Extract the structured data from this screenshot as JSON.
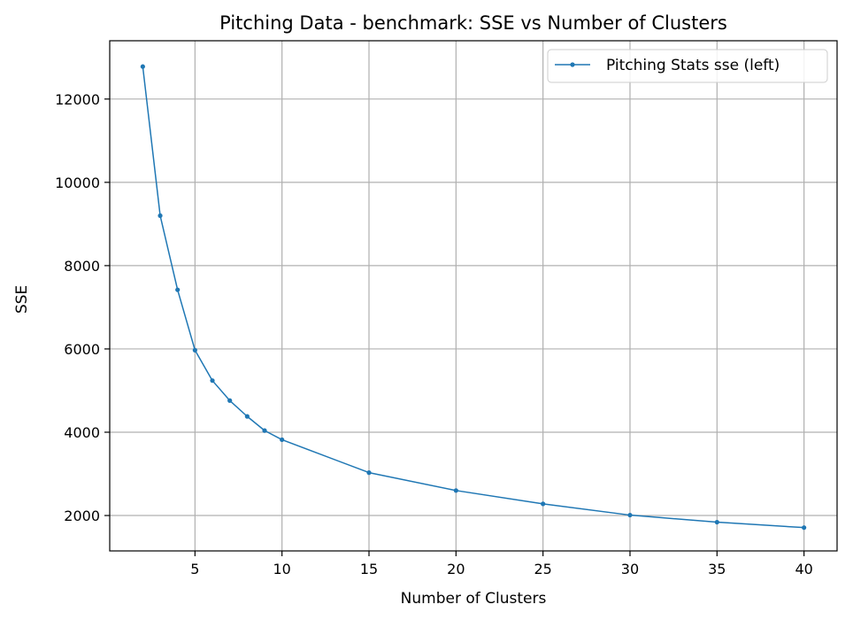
{
  "chart_data": {
    "type": "line",
    "title": "Pitching Data - benchmark: SSE vs Number of Clusters",
    "xlabel": "Number of Clusters",
    "ylabel": "SSE",
    "xlim": [
      0.1,
      41.9
    ],
    "ylim": [
      1150,
      13400
    ],
    "xticks": [
      5,
      10,
      15,
      20,
      25,
      30,
      35,
      40
    ],
    "yticks": [
      2000,
      4000,
      6000,
      8000,
      10000,
      12000
    ],
    "grid": true,
    "legend_position": "top-right",
    "series": [
      {
        "name": "Pitching Stats sse (left)",
        "color": "#1f77b4",
        "marker": "circle",
        "x": [
          2,
          3,
          4,
          5,
          6,
          7,
          8,
          9,
          10,
          15,
          20,
          25,
          30,
          35,
          40
        ],
        "y": [
          12780,
          9200,
          7420,
          5970,
          5240,
          4760,
          4380,
          4040,
          3820,
          3030,
          2600,
          2280,
          2010,
          1840,
          1710
        ]
      }
    ]
  }
}
